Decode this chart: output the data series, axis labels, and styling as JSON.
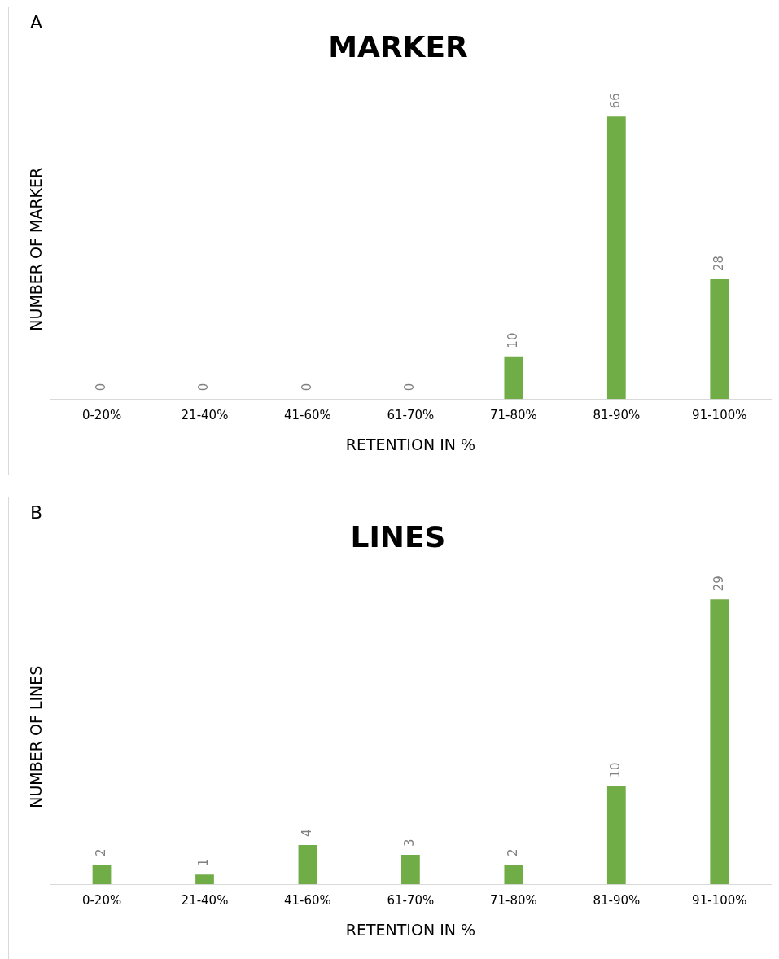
{
  "chart_data": [
    {
      "type": "bar",
      "title": "MARKER",
      "xlabel": "RETENTION IN %",
      "ylabel": "NUMBER OF MARKER",
      "categories": [
        "0-20%",
        "21-40%",
        "41-60%",
        "61-70%",
        "71-80%",
        "81-90%",
        "91-100%"
      ],
      "values": [
        0,
        0,
        0,
        0,
        10,
        66,
        28
      ],
      "color": "#70ad47",
      "data_labels": true,
      "annotations": [
        "A"
      ]
    },
    {
      "type": "bar",
      "title": "LINES",
      "xlabel": "RETENTION IN %",
      "ylabel": "NUMBER OF LINES",
      "categories": [
        "0-20%",
        "21-40%",
        "41-60%",
        "61-70%",
        "71-80%",
        "81-90%",
        "91-100%"
      ],
      "values": [
        2,
        1,
        4,
        3,
        2,
        10,
        29
      ],
      "color": "#70ad47",
      "data_labels": true,
      "annotations": [
        "B"
      ]
    }
  ]
}
